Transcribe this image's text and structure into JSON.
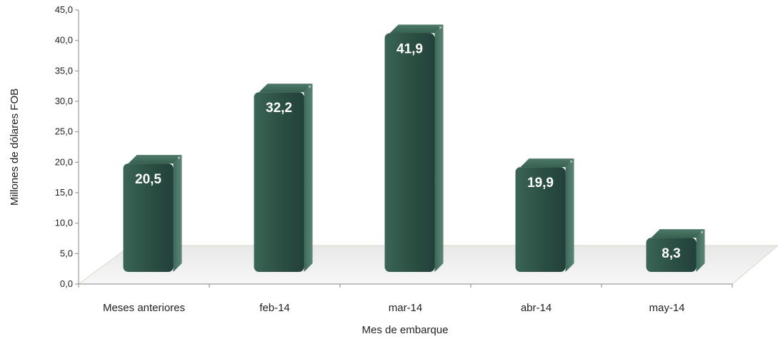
{
  "chart_data": {
    "type": "bar",
    "categories": [
      "Meses anteriores",
      "feb-14",
      "mar-14",
      "abr-14",
      "may-14"
    ],
    "values": [
      20.5,
      32.2,
      41.9,
      19.9,
      8.3
    ],
    "data_labels": [
      "20,5",
      "32,2",
      "41,9",
      "19,9",
      "8,3"
    ],
    "y_ticks": [
      "0,0",
      "5,0",
      "10,0",
      "15,0",
      "20,0",
      "25,0",
      "30,0",
      "35,0",
      "40,0",
      "45,0"
    ],
    "ylim": [
      0,
      45
    ],
    "xlabel": "Mes de embarque",
    "ylabel": "Millones de dólares FOB",
    "grid": false,
    "legend": "none",
    "bar_color": "#2f5446",
    "style": "3d-cylinder"
  }
}
